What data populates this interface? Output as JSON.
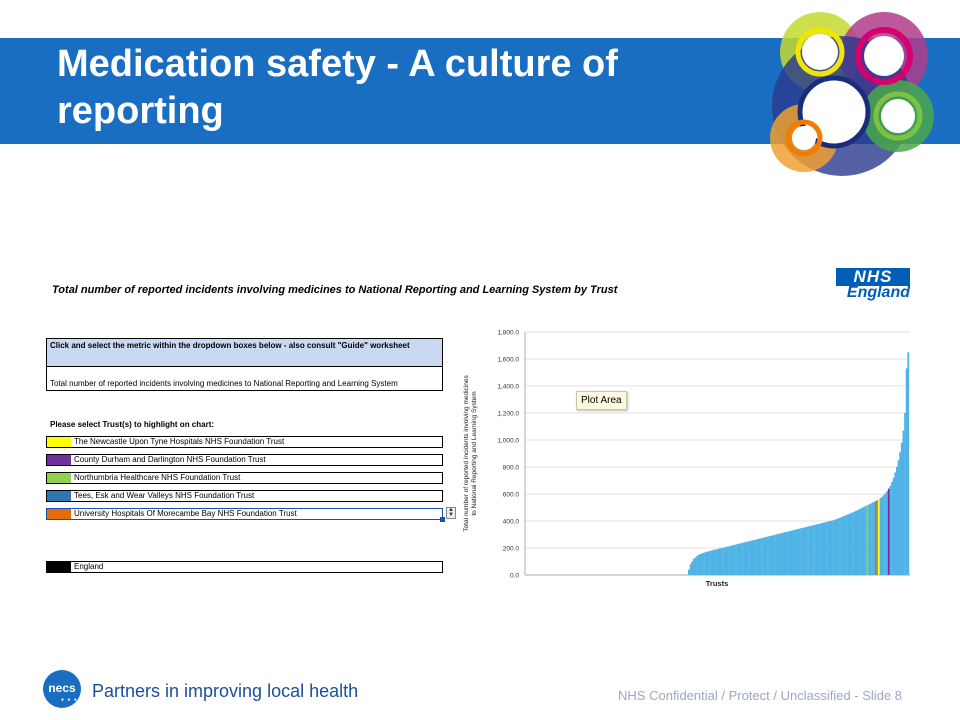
{
  "slide": {
    "title": "Medication safety  - A culture of reporting",
    "tagline": "Partners in improving local health",
    "footer": "NHS Confidential / Protect / Unclassified - Slide 8",
    "brand_logo_text": "necs"
  },
  "report": {
    "title": "Total number of reported incidents involving medicines to National Reporting and Learning System by Trust",
    "nhs_logo": "NHS",
    "nhs_sub": "England",
    "instruction": "Click and select the metric within the dropdown boxes below - also consult \"Guide\" worksheet",
    "metric_value": "Total number of reported incidents involving medicines to National Reporting and Learning System",
    "select_label": "Please select Trust(s) to highlight on chart:",
    "trusts": [
      {
        "name": "The Newcastle Upon Tyne Hospitals NHS Foundation Trust",
        "color": "#ffff00"
      },
      {
        "name": "County Durham and Darlington NHS Foundation Trust",
        "color": "#7030a0"
      },
      {
        "name": "Northumbria Healthcare NHS Foundation Trust",
        "color": "#92d050"
      },
      {
        "name": "Tees, Esk and Wear Valleys NHS Foundation Trust",
        "color": "#2e75b6"
      },
      {
        "name": "University Hospitals Of Morecambe Bay NHS Foundation Trust",
        "color": "#e46c0a"
      },
      {
        "name": "England",
        "color": "#000000"
      }
    ],
    "plot_area_label": "Plot Area"
  },
  "chart_data": {
    "type": "bar",
    "xlabel": "Trusts",
    "ylabel": "Total number of reported incidents involving medicines to National Reporting and Learning System",
    "ylim": [
      0,
      1800
    ],
    "yticks": [
      "0.0",
      "200.0",
      "400.0",
      "600.0",
      "800.0",
      "1,000.0",
      "1,200.0",
      "1,400.0",
      "1,600.0",
      "1,800.0"
    ],
    "bar_color": "#4fb3e6",
    "values": [
      40,
      80,
      100,
      120,
      130,
      140,
      150,
      155,
      160,
      165,
      168,
      172,
      175,
      178,
      182,
      185,
      188,
      190,
      193,
      196,
      199,
      202,
      205,
      208,
      211,
      214,
      217,
      220,
      223,
      226,
      229,
      232,
      235,
      238,
      241,
      244,
      247,
      250,
      253,
      256,
      259,
      262,
      265,
      268,
      271,
      274,
      277,
      280,
      283,
      286,
      289,
      292,
      295,
      298,
      301,
      304,
      307,
      310,
      313,
      316,
      319,
      322,
      325,
      328,
      331,
      334,
      337,
      340,
      343,
      346,
      349,
      352,
      355,
      358,
      361,
      364,
      367,
      370,
      373,
      376,
      379,
      382,
      385,
      388,
      391,
      394,
      397,
      400,
      403,
      406,
      410,
      415,
      420,
      425,
      430,
      435,
      440,
      445,
      450,
      455,
      460,
      465,
      470,
      476,
      482,
      488,
      494,
      500,
      506,
      512,
      518,
      524,
      530,
      536,
      542,
      548,
      555,
      562,
      570,
      580,
      592,
      606,
      622,
      640,
      660,
      690,
      720,
      760,
      800,
      850,
      910,
      980,
      1070,
      1200,
      1530,
      1650
    ],
    "highlights": [
      {
        "index": 110,
        "color": "#92d050"
      },
      {
        "index": 115,
        "color": "#e46c0a"
      },
      {
        "index": 117,
        "color": "#ffff00"
      },
      {
        "index": 123,
        "color": "#7030a0"
      }
    ]
  }
}
